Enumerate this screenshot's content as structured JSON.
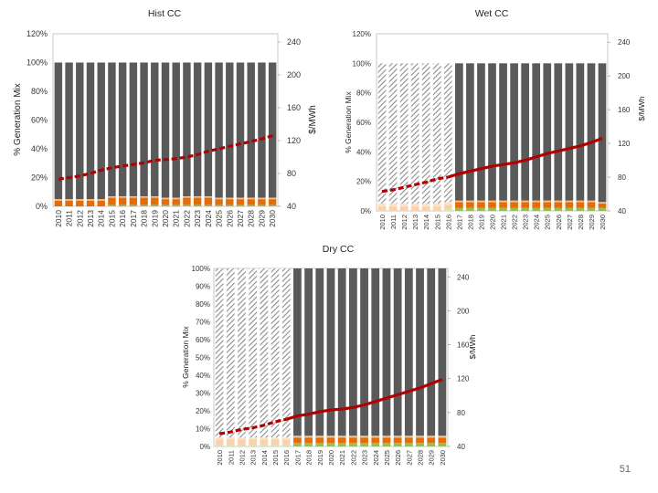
{
  "slide": {
    "page_number": "51"
  },
  "chart_data": [
    {
      "type": "bar",
      "title": "Hist CC",
      "ylabel": "% Generation Mix",
      "y2label": "$/MWh",
      "ylim": [
        0,
        120
      ],
      "ytick_labels": [
        "0%",
        "20%",
        "40%",
        "60%",
        "80%",
        "100%",
        "120%"
      ],
      "y2lim": [
        40,
        250
      ],
      "y2_ticks": [
        40,
        80,
        120,
        160,
        200,
        240
      ],
      "categories": [
        "2010",
        "2011",
        "2012",
        "2013",
        "2014",
        "2015",
        "2016",
        "2017",
        "2018",
        "2019",
        "2020",
        "2021",
        "2022",
        "2023",
        "2024",
        "2025",
        "2026",
        "2027",
        "2028",
        "2029",
        "2030"
      ],
      "historical_through": null,
      "colors": {
        "bar": "#5a5a5a",
        "orange": "#e46c0a",
        "tan": "#f6c18c",
        "green": "#9bbb59",
        "price": "#b00000"
      },
      "series": [
        {
          "values": [
            4,
            4,
            4,
            4,
            4,
            5,
            5,
            5,
            5,
            5,
            4,
            4,
            5,
            5,
            5,
            4,
            4,
            4,
            4,
            4,
            4
          ]
        },
        {
          "values": [
            1,
            1,
            1,
            1,
            1,
            1,
            1,
            1,
            1,
            1,
            1,
            1,
            1,
            1,
            1,
            1,
            1,
            1,
            1,
            1,
            1
          ]
        },
        {
          "values": [
            0,
            0,
            0,
            0,
            0,
            1,
            1,
            1,
            1,
            1,
            1,
            1,
            1,
            1,
            1,
            1,
            1,
            1,
            1,
            1,
            1
          ]
        },
        {
          "values": [
            95,
            95,
            95,
            95,
            95,
            93,
            93,
            93,
            93,
            93,
            94,
            94,
            93,
            93,
            93,
            94,
            94,
            94,
            94,
            94,
            94
          ]
        },
        {
          "axis": "y2",
          "type": "line",
          "values": [
            73,
            75,
            77,
            80,
            84,
            87,
            89,
            91,
            93,
            96,
            97,
            98,
            100,
            103,
            107,
            110,
            113,
            116,
            119,
            122,
            126
          ]
        }
      ]
    },
    {
      "type": "bar",
      "title": "Wet CC",
      "ylabel": "% Generation Mix",
      "y2label": "$/MWh",
      "ylim": [
        0,
        120
      ],
      "ytick_labels": [
        "0%",
        "20%",
        "40%",
        "60%",
        "80%",
        "100%",
        "120%"
      ],
      "y2lim": [
        40,
        250
      ],
      "y2_ticks": [
        40,
        80,
        120,
        160,
        200,
        240
      ],
      "categories": [
        "2010",
        "2011",
        "2012",
        "2013",
        "2014",
        "2015",
        "2016",
        "2017",
        "2018",
        "2019",
        "2020",
        "2021",
        "2022",
        "2023",
        "2024",
        "2025",
        "2026",
        "2027",
        "2028",
        "2029",
        "2030"
      ],
      "historical_through": "2016",
      "colors": {
        "bar": "#5a5a5a",
        "orange": "#e46c0a",
        "tan": "#f6c18c",
        "green": "#9bbb59",
        "price": "#b00000"
      },
      "series": [
        {
          "values": [
            3,
            3,
            3,
            3,
            3,
            3,
            3,
            4,
            4,
            4,
            4,
            4,
            4,
            4,
            4,
            4,
            4,
            4,
            4,
            4,
            3
          ]
        },
        {
          "values": [
            2,
            2,
            2,
            2,
            2,
            2,
            2,
            1,
            1,
            1,
            1,
            1,
            1,
            1,
            1,
            1,
            1,
            1,
            1,
            1,
            1
          ]
        },
        {
          "values": [
            0,
            0,
            0,
            0,
            0,
            0,
            1,
            2,
            2,
            2,
            2,
            2,
            2,
            2,
            2,
            2,
            2,
            2,
            2,
            2,
            2
          ]
        },
        {
          "values": [
            95,
            95,
            95,
            95,
            95,
            95,
            94,
            93,
            93,
            93,
            93,
            93,
            93,
            93,
            93,
            93,
            93,
            93,
            93,
            93,
            94
          ]
        },
        {
          "axis": "y2",
          "type": "line",
          "values": [
            63,
            65,
            68,
            71,
            74,
            78,
            80,
            84,
            87,
            90,
            93,
            95,
            97,
            100,
            104,
            108,
            111,
            114,
            117,
            121,
            126
          ]
        }
      ]
    },
    {
      "type": "bar",
      "title": "Dry CC",
      "ylabel": "% Generation Mix",
      "y2label": "$/MWh",
      "ylim": [
        0,
        100
      ],
      "ytick_labels": [
        "0%",
        "10%",
        "20%",
        "30%",
        "40%",
        "50%",
        "60%",
        "70%",
        "80%",
        "90%",
        "100%"
      ],
      "y2lim": [
        40,
        250
      ],
      "y2_ticks": [
        40,
        80,
        120,
        160,
        200,
        240
      ],
      "categories": [
        "2010",
        "2011",
        "2012",
        "2013",
        "2014",
        "2015",
        "2016",
        "2017",
        "2018",
        "2019",
        "2020",
        "2021",
        "2022",
        "2023",
        "2024",
        "2025",
        "2026",
        "2027",
        "2028",
        "2029",
        "2030"
      ],
      "historical_through": "2016",
      "colors": {
        "bar": "#5a5a5a",
        "orange": "#e46c0a",
        "tan": "#f6c18c",
        "green": "#9bbb59",
        "price": "#b00000"
      },
      "series": [
        {
          "values": [
            3,
            3,
            3,
            3,
            3,
            3,
            3,
            3,
            3,
            3,
            3,
            3,
            3,
            3,
            3,
            3,
            3,
            3,
            3,
            3,
            3
          ]
        },
        {
          "values": [
            1,
            1,
            1,
            1,
            1,
            1,
            1,
            1,
            1,
            1,
            1,
            1,
            1,
            1,
            1,
            1,
            1,
            1,
            1,
            1,
            1
          ]
        },
        {
          "values": [
            1,
            1,
            1,
            1,
            1,
            1,
            1,
            2,
            2,
            2,
            2,
            2,
            2,
            2,
            2,
            2,
            2,
            2,
            2,
            2,
            2
          ]
        },
        {
          "values": [
            95,
            95,
            95,
            95,
            95,
            95,
            95,
            94,
            94,
            94,
            94,
            94,
            94,
            94,
            94,
            94,
            94,
            94,
            94,
            94,
            94
          ]
        },
        {
          "axis": "y2",
          "type": "line",
          "values": [
            55,
            57,
            60,
            62,
            65,
            69,
            72,
            76,
            78,
            81,
            83,
            84,
            86,
            89,
            93,
            97,
            101,
            105,
            109,
            114,
            119
          ]
        }
      ]
    }
  ]
}
